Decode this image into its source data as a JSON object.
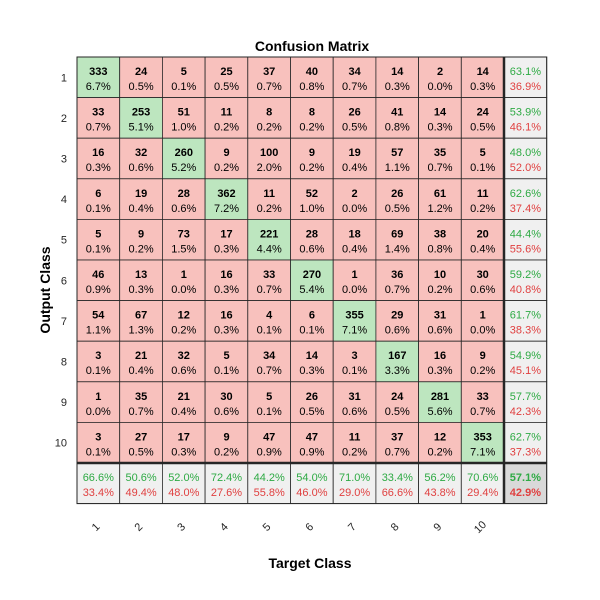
{
  "chart_data": {
    "type": "heatmap",
    "title": "Confusion Matrix",
    "xlabel": "Target Class",
    "ylabel": "Output Class",
    "classes": [
      "1",
      "2",
      "3",
      "4",
      "5",
      "6",
      "7",
      "8",
      "9",
      "10"
    ],
    "counts": [
      [
        333,
        24,
        5,
        25,
        37,
        40,
        34,
        14,
        2,
        14
      ],
      [
        33,
        253,
        51,
        11,
        8,
        8,
        26,
        41,
        14,
        24
      ],
      [
        16,
        32,
        260,
        9,
        100,
        9,
        19,
        57,
        35,
        5
      ],
      [
        6,
        19,
        28,
        362,
        11,
        52,
        2,
        26,
        61,
        11
      ],
      [
        5,
        9,
        73,
        17,
        221,
        28,
        18,
        69,
        38,
        20
      ],
      [
        46,
        13,
        1,
        16,
        33,
        270,
        1,
        36,
        10,
        30
      ],
      [
        54,
        67,
        12,
        16,
        4,
        6,
        355,
        29,
        31,
        1
      ],
      [
        3,
        21,
        32,
        5,
        34,
        14,
        3,
        167,
        16,
        9
      ],
      [
        1,
        35,
        21,
        30,
        5,
        26,
        31,
        24,
        281,
        33
      ],
      [
        3,
        27,
        17,
        9,
        47,
        47,
        11,
        37,
        12,
        353
      ]
    ],
    "percents": [
      [
        "6.7%",
        "0.5%",
        "0.1%",
        "0.5%",
        "0.7%",
        "0.8%",
        "0.7%",
        "0.3%",
        "0.0%",
        "0.3%"
      ],
      [
        "0.7%",
        "5.1%",
        "1.0%",
        "0.2%",
        "0.2%",
        "0.2%",
        "0.5%",
        "0.8%",
        "0.3%",
        "0.5%"
      ],
      [
        "0.3%",
        "0.6%",
        "5.2%",
        "0.2%",
        "2.0%",
        "0.2%",
        "0.4%",
        "1.1%",
        "0.7%",
        "0.1%"
      ],
      [
        "0.1%",
        "0.4%",
        "0.6%",
        "7.2%",
        "0.2%",
        "1.0%",
        "0.0%",
        "0.5%",
        "1.2%",
        "0.2%"
      ],
      [
        "0.1%",
        "0.2%",
        "1.5%",
        "0.3%",
        "4.4%",
        "0.6%",
        "0.4%",
        "1.4%",
        "0.8%",
        "0.4%"
      ],
      [
        "0.9%",
        "0.3%",
        "0.0%",
        "0.3%",
        "0.7%",
        "5.4%",
        "0.0%",
        "0.7%",
        "0.2%",
        "0.6%"
      ],
      [
        "1.1%",
        "1.3%",
        "0.2%",
        "0.3%",
        "0.1%",
        "0.1%",
        "7.1%",
        "0.6%",
        "0.6%",
        "0.0%"
      ],
      [
        "0.1%",
        "0.4%",
        "0.6%",
        "0.1%",
        "0.7%",
        "0.3%",
        "0.1%",
        "3.3%",
        "0.3%",
        "0.2%"
      ],
      [
        "0.0%",
        "0.7%",
        "0.4%",
        "0.6%",
        "0.1%",
        "0.5%",
        "0.6%",
        "0.5%",
        "5.6%",
        "0.7%"
      ],
      [
        "0.1%",
        "0.5%",
        "0.3%",
        "0.2%",
        "0.9%",
        "0.9%",
        "0.2%",
        "0.7%",
        "0.2%",
        "7.1%"
      ]
    ],
    "row_summary": {
      "correct": [
        "63.1%",
        "53.9%",
        "48.0%",
        "62.6%",
        "44.4%",
        "59.2%",
        "61.7%",
        "54.9%",
        "57.7%",
        "62.7%"
      ],
      "incorrect": [
        "36.9%",
        "46.1%",
        "52.0%",
        "37.4%",
        "55.6%",
        "40.8%",
        "38.3%",
        "45.1%",
        "42.3%",
        "37.3%"
      ]
    },
    "col_summary": {
      "correct": [
        "66.6%",
        "50.6%",
        "52.0%",
        "72.4%",
        "44.2%",
        "54.0%",
        "71.0%",
        "33.4%",
        "56.2%",
        "70.6%"
      ],
      "incorrect": [
        "33.4%",
        "49.4%",
        "48.0%",
        "27.6%",
        "55.8%",
        "46.0%",
        "29.0%",
        "66.6%",
        "43.8%",
        "29.4%"
      ]
    },
    "overall": {
      "correct": "57.1%",
      "incorrect": "42.9%"
    }
  },
  "colors": {
    "diagonal": "#bde6bf",
    "off_diagonal": "#f8c1bd",
    "summary": "#f0f0f0",
    "overall": "#d9d9d9",
    "correct_text": "#2eaa44",
    "incorrect_text": "#e04040",
    "grid": "#262626"
  }
}
